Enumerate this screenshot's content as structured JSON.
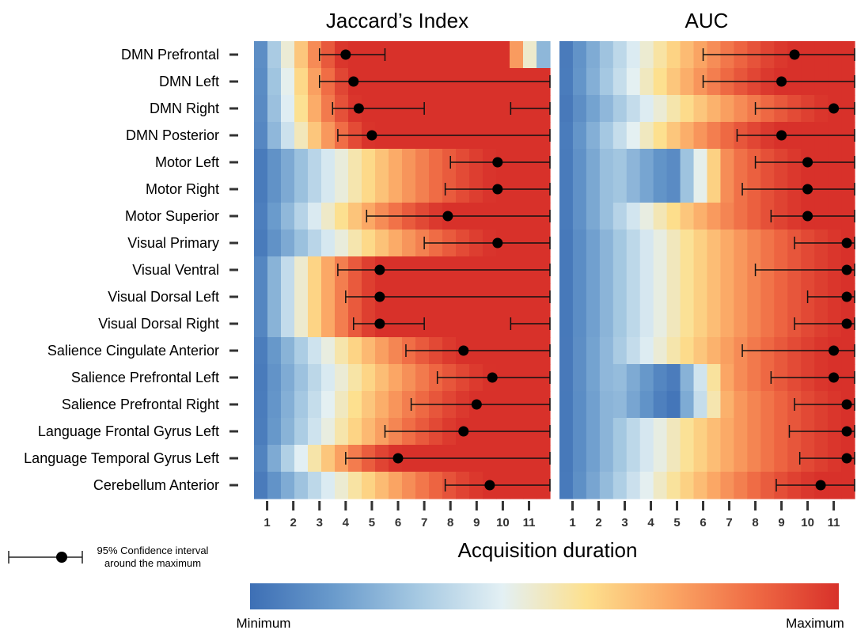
{
  "chart_data": {
    "type": "heatmap",
    "panels": [
      {
        "title": "Jaccard’s Index",
        "maxima": [
          4,
          4.3,
          4.5,
          5,
          9.8,
          9.8,
          7.9,
          9.8,
          5.3,
          5.3,
          5.3,
          8.5,
          9.6,
          9,
          8.5,
          6,
          9.5
        ],
        "ci": [
          [
            [
              3,
              5.5
            ]
          ],
          [
            [
              3,
              11.8
            ]
          ],
          [
            [
              3.5,
              7
            ],
            [
              10.3,
              11.8
            ]
          ],
          [
            [
              3.7,
              11.8
            ]
          ],
          [
            [
              8,
              11.8
            ]
          ],
          [
            [
              7.8,
              11.8
            ]
          ],
          [
            [
              4.8,
              11.8
            ]
          ],
          [
            [
              7,
              11.8
            ]
          ],
          [
            [
              3.7,
              11.8
            ]
          ],
          [
            [
              4,
              11.8
            ]
          ],
          [
            [
              4.3,
              7
            ],
            [
              10.3,
              11.8
            ]
          ],
          [
            [
              6.3,
              11.8
            ]
          ],
          [
            [
              7.5,
              11.8
            ]
          ],
          [
            [
              6.5,
              11.8
            ]
          ],
          [
            [
              5.5,
              11.8
            ]
          ],
          [
            [
              4,
              11.8
            ]
          ],
          [
            [
              7.8,
              11.8
            ]
          ]
        ]
      },
      {
        "title": "AUC",
        "maxima": [
          9.5,
          9,
          11,
          9,
          10,
          10,
          10,
          11.5,
          11.5,
          11.5,
          11.5,
          11,
          11,
          11.5,
          11.5,
          11.5,
          10.5
        ],
        "ci": [
          [
            [
              6,
              11.8
            ]
          ],
          [
            [
              6,
              11.8
            ]
          ],
          [
            [
              8,
              11.8
            ]
          ],
          [
            [
              7.3,
              11.8
            ]
          ],
          [
            [
              8,
              11.8
            ]
          ],
          [
            [
              7.5,
              11.8
            ]
          ],
          [
            [
              8.6,
              11.8
            ]
          ],
          [
            [
              9.5,
              11.8
            ]
          ],
          [
            [
              8,
              11.8
            ]
          ],
          [
            [
              10,
              11.8
            ]
          ],
          [
            [
              9.5,
              11.8
            ]
          ],
          [
            [
              7.5,
              11.8
            ]
          ],
          [
            [
              8.6,
              11.8
            ]
          ],
          [
            [
              9.5,
              11.8
            ]
          ],
          [
            [
              9.3,
              11.8
            ]
          ],
          [
            [
              9.7,
              11.8
            ]
          ],
          [
            [
              8.8,
              11.8
            ]
          ]
        ]
      }
    ],
    "rows": [
      "DMN Prefrontal",
      "DMN Left",
      "DMN Right",
      "DMN Posterior",
      "Motor Left",
      "Motor Right",
      "Motor Superior",
      "Visual Primary",
      "Visual Ventral",
      "Visual Dorsal Left",
      "Visual Dorsal Right",
      "Salience Cingulate Anterior",
      "Salience Prefrontal Left",
      "Salience Prefrontal Right",
      "Language Frontal Gyrus Left",
      "Language Temporal Gyrus Left",
      "Cerebellum Anterior"
    ],
    "xticks": [
      "1",
      "2",
      "3",
      "4",
      "5",
      "6",
      "7",
      "8",
      "9",
      "10",
      "11"
    ],
    "xlabel": "Acquisition duration",
    "xlim": [
      0.5,
      11.8
    ],
    "legend_text": [
      "95% Confidence interval",
      "around the maximum"
    ],
    "colorbar_labels": [
      "Minimum",
      "Maximum"
    ],
    "colormap": [
      "#3d6fb5",
      "#6a9bcc",
      "#a6c9e2",
      "#e3f0f4",
      "#fde08e",
      "#fba765",
      "#ef6a44",
      "#d8312a"
    ]
  }
}
